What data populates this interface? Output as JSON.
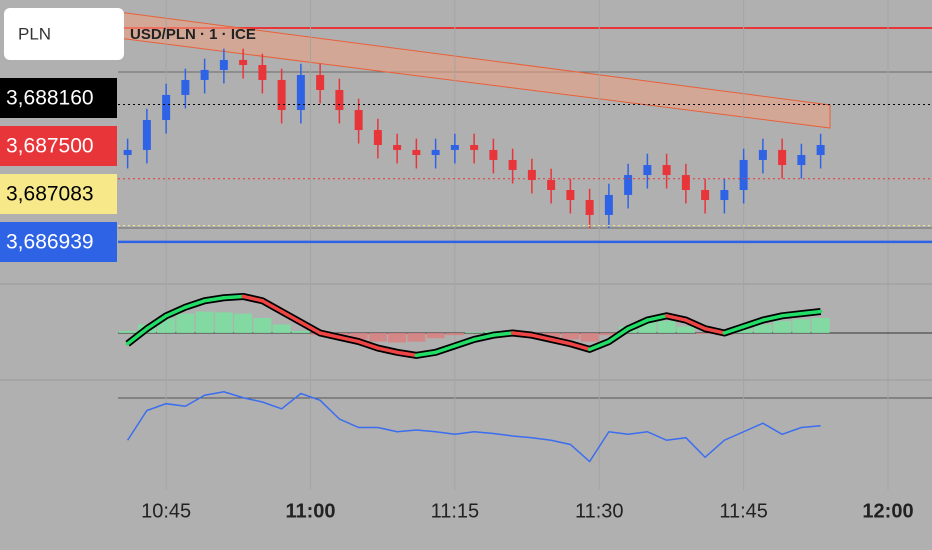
{
  "currency": "PLN",
  "chart_data": [
    {
      "type": "candlestick",
      "title": "USD/PLN · 1 · ICE",
      "x": [
        "10:41",
        "10:43",
        "10:45",
        "10:47",
        "10:49",
        "10:51",
        "10:53",
        "10:55",
        "10:57",
        "10:59",
        "11:01",
        "11:03",
        "11:05",
        "11:07",
        "11:09",
        "11:11",
        "11:13",
        "11:15",
        "11:17",
        "11:19",
        "11:21",
        "11:23",
        "11:25",
        "11:27",
        "11:29",
        "11:31",
        "11:33",
        "11:35",
        "11:37",
        "11:39",
        "11:41",
        "11:43",
        "11:45",
        "11:47",
        "11:49",
        "11:51",
        "11:53"
      ],
      "open": [
        3.687711,
        3.687756,
        3.688022,
        3.688245,
        3.688378,
        3.688467,
        3.688556,
        3.688511,
        3.688378,
        3.688111,
        3.688422,
        3.688289,
        3.688111,
        3.687933,
        3.6878,
        3.687756,
        3.687711,
        3.687756,
        3.6878,
        3.687756,
        3.687667,
        3.687578,
        3.687489,
        3.6874,
        3.687311,
        3.687178,
        3.687356,
        3.687533,
        3.687622,
        3.687533,
        3.6874,
        3.687311,
        3.6874,
        3.687667,
        3.687756,
        3.687622,
        3.687711
      ],
      "high": [
        3.687856,
        3.688122,
        3.688345,
        3.688478,
        3.688567,
        3.688656,
        3.688656,
        3.688611,
        3.688478,
        3.688522,
        3.688522,
        3.688389,
        3.688211,
        3.688033,
        3.6879,
        3.687856,
        3.687856,
        3.6879,
        3.6879,
        3.687856,
        3.687767,
        3.687678,
        3.687589,
        3.6875,
        3.687411,
        3.687456,
        3.687633,
        3.687722,
        3.687722,
        3.687633,
        3.6875,
        3.6875,
        3.687767,
        3.687856,
        3.687856,
        3.687811,
        3.6879
      ],
      "low": [
        3.687591,
        3.687636,
        3.687902,
        3.688125,
        3.688258,
        3.688347,
        3.688391,
        3.688258,
        3.687991,
        3.687991,
        3.688169,
        3.687991,
        3.687813,
        3.68768,
        3.687636,
        3.687591,
        3.687591,
        3.687636,
        3.687636,
        3.687547,
        3.687458,
        3.687369,
        3.68728,
        3.687191,
        3.687058,
        3.687058,
        3.687236,
        3.687413,
        3.687413,
        3.68728,
        3.687191,
        3.687191,
        3.68728,
        3.687547,
        3.687502,
        3.687502,
        3.687591
      ],
      "close": [
        3.687756,
        3.688022,
        3.688245,
        3.688378,
        3.688467,
        3.688556,
        3.688511,
        3.688378,
        3.688111,
        3.688422,
        3.688289,
        3.688111,
        3.687933,
        3.6878,
        3.687756,
        3.687711,
        3.687756,
        3.6878,
        3.687756,
        3.687667,
        3.687578,
        3.687489,
        3.6874,
        3.687311,
        3.687178,
        3.687356,
        3.687533,
        3.687622,
        3.687533,
        3.6874,
        3.687311,
        3.6874,
        3.687667,
        3.687756,
        3.687622,
        3.687711,
        3.6878
      ],
      "up_color": "#2f63e6",
      "down_color": "#e8353a",
      "ylim": [
        3.6866,
        3.689
      ],
      "xlim": [
        "10:40",
        "12:00"
      ],
      "xticks": [
        "10:45",
        "11:00",
        "11:15",
        "11:30",
        "11:45",
        "12:00"
      ],
      "price_labels": [
        {
          "value": 3.68816,
          "label": "3,688160",
          "color": "#000000",
          "text_color": "#ffffff"
        },
        {
          "value": 3.6875,
          "label": "3,687500",
          "color": "#e8353a",
          "text_color": "#ffffff"
        },
        {
          "value": 3.687083,
          "label": "3,687083",
          "color": "#f7e98a",
          "text_color": "#000000"
        },
        {
          "value": 3.686939,
          "label": "3,686939",
          "color": "#2f63e6",
          "text_color": "#ffffff"
        }
      ]
    },
    {
      "type": "oscillator",
      "ylim": [
        -1,
        1
      ],
      "series": [
        {
          "color": "#7be0a0",
          "values": [
            0.05,
            0.2,
            0.35,
            0.45,
            0.5,
            0.48,
            0.45,
            0.35,
            0.2,
            0.05,
            -0.05,
            -0.1,
            -0.15,
            -0.2,
            -0.22,
            -0.2,
            -0.12,
            -0.05,
            0.02,
            0.05,
            0.04,
            -0.02,
            -0.1,
            -0.15,
            -0.2,
            -0.05,
            0.15,
            0.25,
            0.28,
            0.15,
            -0.02,
            -0.05,
            0.1,
            0.2,
            0.28,
            0.32,
            0.35
          ]
        },
        {
          "color": "#22dd66",
          "values": [
            -0.25,
            0.1,
            0.4,
            0.6,
            0.75,
            0.82,
            0.85,
            0.75,
            0.5,
            0.25,
            0,
            -0.1,
            -0.2,
            -0.35,
            -0.45,
            -0.52,
            -0.45,
            -0.3,
            -0.15,
            -0.05,
            0,
            -0.05,
            -0.15,
            -0.25,
            -0.38,
            -0.2,
            0.1,
            0.3,
            0.4,
            0.3,
            0.1,
            0,
            0.15,
            0.3,
            0.4,
            0.45,
            0.5
          ]
        }
      ]
    },
    {
      "type": "line",
      "color": "#3a6df0",
      "ylim": [
        0,
        1
      ],
      "values": [
        0.35,
        0.7,
        0.78,
        0.75,
        0.88,
        0.92,
        0.85,
        0.8,
        0.72,
        0.9,
        0.82,
        0.6,
        0.5,
        0.5,
        0.45,
        0.47,
        0.45,
        0.42,
        0.45,
        0.43,
        0.4,
        0.38,
        0.35,
        0.3,
        0.1,
        0.45,
        0.42,
        0.45,
        0.35,
        0.38,
        0.15,
        0.35,
        0.45,
        0.55,
        0.42,
        0.5,
        0.52
      ]
    }
  ]
}
